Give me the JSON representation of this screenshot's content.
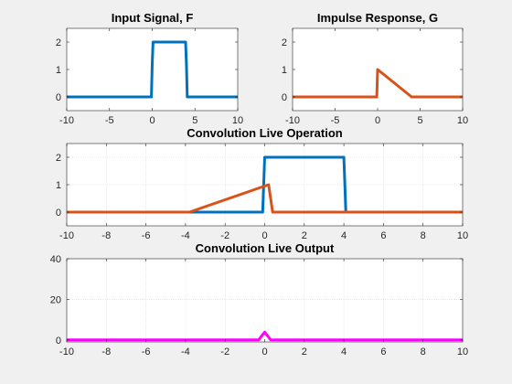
{
  "chart_data": [
    {
      "type": "line",
      "title": "Input Signal, F",
      "xlim": [
        -10,
        10
      ],
      "ylim": [
        -0.5,
        2.5
      ],
      "xticks": [
        -10,
        -5,
        0,
        5,
        10
      ],
      "yticks": [
        0,
        1,
        2
      ],
      "grid": false,
      "series": [
        {
          "color": "#0072BD",
          "x": [
            -10,
            -0.1,
            0,
            0.1,
            3.9,
            4.0,
            4.1,
            10
          ],
          "y": [
            0,
            0,
            1.2,
            2,
            2,
            1.2,
            0,
            0
          ]
        }
      ]
    },
    {
      "type": "line",
      "title": "Impulse Response, G",
      "xlim": [
        -10,
        10
      ],
      "ylim": [
        -0.5,
        2.5
      ],
      "xticks": [
        -10,
        -5,
        0,
        5,
        10
      ],
      "yticks": [
        0,
        1,
        2
      ],
      "grid": false,
      "series": [
        {
          "color": "#D95319",
          "x": [
            -10,
            -0.1,
            0,
            4,
            10
          ],
          "y": [
            0,
            0,
            1,
            0,
            0
          ]
        }
      ]
    },
    {
      "type": "line",
      "title": "Convolution Live Operation",
      "xlim": [
        -10,
        10
      ],
      "ylim": [
        -0.5,
        2.5
      ],
      "xticks": [
        -10,
        -8,
        -6,
        -4,
        -2,
        0,
        2,
        4,
        6,
        8,
        10
      ],
      "yticks": [
        0,
        1,
        2
      ],
      "grid": true,
      "series": [
        {
          "color": "#0072BD",
          "x": [
            -10,
            -0.1,
            0,
            4.0,
            4.1,
            10
          ],
          "y": [
            0,
            0,
            2,
            2,
            0,
            0
          ]
        },
        {
          "color": "#D95319",
          "x": [
            -10,
            -3.8,
            0.2,
            0.4,
            10
          ],
          "y": [
            0,
            0,
            1,
            0,
            0
          ]
        }
      ]
    },
    {
      "type": "line",
      "title": "Convolution Live Output",
      "xlim": [
        -10,
        10
      ],
      "ylim": [
        -1,
        40
      ],
      "xticks": [
        -10,
        -8,
        -6,
        -4,
        -2,
        0,
        2,
        4,
        6,
        8,
        10
      ],
      "yticks": [
        0,
        20,
        40
      ],
      "grid": true,
      "series": [
        {
          "color": "#FF00FF",
          "x": [
            -10,
            -0.3,
            -0.15,
            0,
            0.15,
            0.3,
            10
          ],
          "y": [
            0,
            0,
            2,
            3.8,
            2,
            0,
            0
          ]
        }
      ]
    }
  ]
}
